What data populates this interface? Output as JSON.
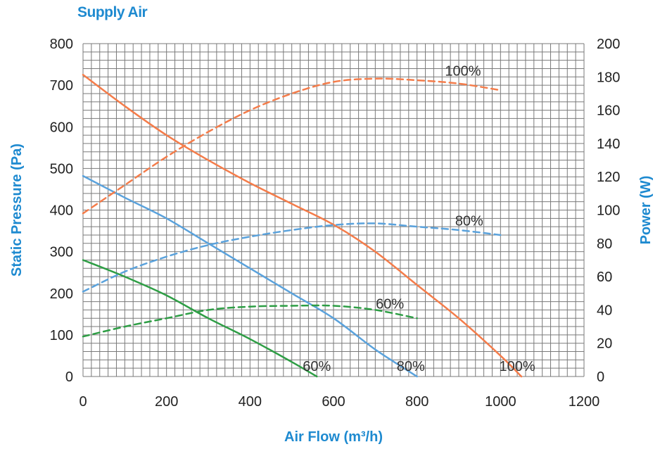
{
  "chart_data": {
    "type": "line",
    "title": "Supply Air",
    "xlabel": "Air Flow (m³/h)",
    "ylabel_left": "Static Pressure (Pa)",
    "ylabel_right": "Power (W)",
    "xlim": [
      0,
      1200
    ],
    "ylim_left": [
      0,
      800
    ],
    "ylim_right": [
      0,
      200
    ],
    "x_ticks": [
      0,
      200,
      400,
      600,
      800,
      1000,
      1200
    ],
    "y_left_ticks": [
      0,
      100,
      200,
      300,
      400,
      500,
      600,
      700,
      800
    ],
    "y_right_ticks": [
      0,
      20,
      40,
      60,
      80,
      100,
      120,
      140,
      160,
      180,
      200
    ],
    "grid": true,
    "series": [
      {
        "name": "100%",
        "kind": "pressure",
        "axis": "left",
        "color": "#f47c4a",
        "dash": false,
        "x": [
          0,
          100,
          200,
          300,
          400,
          500,
          600,
          700,
          800,
          900,
          1000,
          1050
        ],
        "y": [
          725,
          650,
          580,
          520,
          465,
          415,
          365,
          300,
          220,
          140,
          50,
          0
        ]
      },
      {
        "name": "80%",
        "kind": "pressure",
        "axis": "left",
        "color": "#5aa2dc",
        "dash": false,
        "x": [
          0,
          100,
          200,
          300,
          400,
          500,
          600,
          700,
          800
        ],
        "y": [
          482,
          430,
          380,
          320,
          260,
          200,
          140,
          65,
          0
        ]
      },
      {
        "name": "60%",
        "kind": "pressure",
        "axis": "left",
        "color": "#2e9e45",
        "dash": false,
        "x": [
          0,
          100,
          200,
          300,
          400,
          500,
          560
        ],
        "y": [
          280,
          240,
          195,
          140,
          90,
          35,
          0
        ]
      },
      {
        "name": "100%",
        "kind": "power",
        "axis": "right",
        "color": "#f47c4a",
        "dash": true,
        "x": [
          0,
          100,
          200,
          300,
          400,
          500,
          600,
          700,
          800,
          900,
          1000
        ],
        "y": [
          98,
          115,
          132,
          147,
          160,
          170,
          177,
          179,
          178,
          176,
          172
        ]
      },
      {
        "name": "80%",
        "kind": "power",
        "axis": "right",
        "color": "#5aa2dc",
        "dash": true,
        "x": [
          0,
          100,
          200,
          300,
          400,
          500,
          600,
          700,
          800,
          900,
          1000
        ],
        "y": [
          51,
          63,
          72,
          79,
          84,
          88,
          91,
          92,
          90,
          88,
          85
        ]
      },
      {
        "name": "60%",
        "kind": "power",
        "axis": "right",
        "color": "#2e9e45",
        "dash": true,
        "x": [
          0,
          100,
          200,
          300,
          400,
          500,
          600,
          700,
          800
        ],
        "y": [
          24,
          30,
          35,
          40,
          42,
          42.5,
          42.5,
          40,
          35
        ]
      }
    ],
    "annotations": [
      {
        "text": "100%",
        "x": 910,
        "y": 735,
        "axis": "left"
      },
      {
        "text": "80%",
        "x": 925,
        "y": 375,
        "axis": "left"
      },
      {
        "text": "60%",
        "x": 735,
        "y": 175,
        "axis": "left"
      },
      {
        "text": "60%",
        "x": 560,
        "y": 25,
        "axis": "left"
      },
      {
        "text": "80%",
        "x": 785,
        "y": 25,
        "axis": "left"
      },
      {
        "text": "100%",
        "x": 1040,
        "y": 25,
        "axis": "left"
      }
    ]
  }
}
